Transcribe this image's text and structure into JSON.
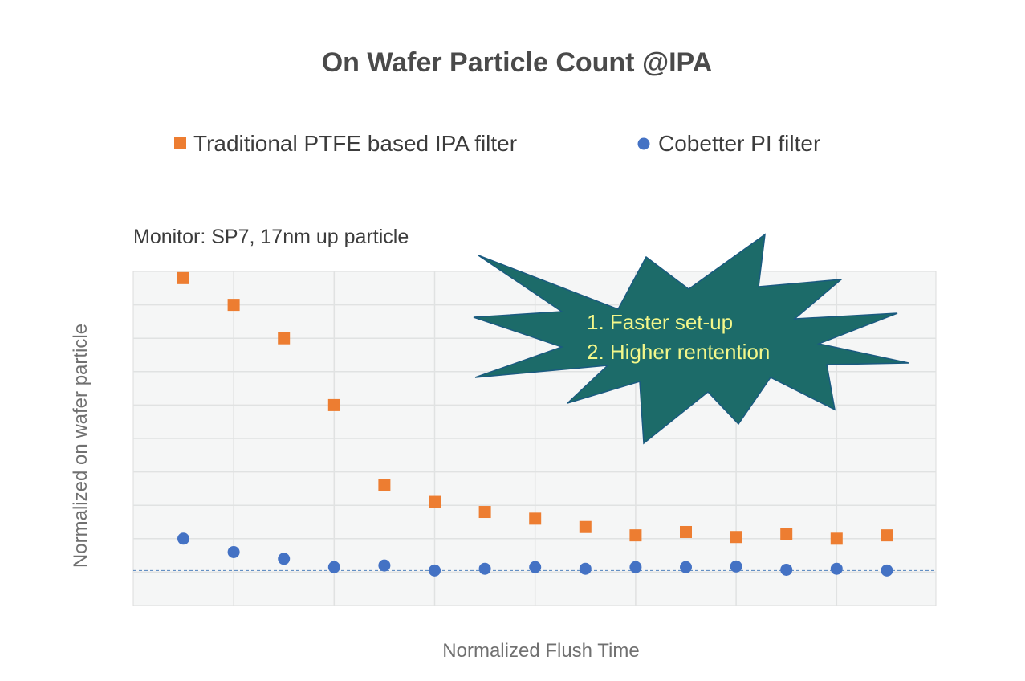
{
  "chart_data": {
    "type": "scatter",
    "title": "On Wafer Particle Count @IPA",
    "xlabel": "Normalized Flush Time",
    "ylabel": "Normalized on wafer particle",
    "ylim": [
      0,
      10
    ],
    "grid": true,
    "legend_position": "top",
    "x": [
      1,
      2,
      3,
      4,
      5,
      6,
      7,
      8,
      9,
      10,
      11,
      12,
      13,
      14,
      15
    ],
    "series": [
      {
        "name": "Traditional PTFE based IPA filter",
        "color": "#ed7d31",
        "marker": "square",
        "values": [
          9.8,
          9.0,
          8.0,
          6.0,
          3.6,
          3.1,
          2.8,
          2.6,
          2.35,
          2.1,
          2.2,
          2.05,
          2.15,
          2.0,
          2.1
        ]
      },
      {
        "name": "Cobetter PI filter",
        "color": "#4472c4",
        "marker": "circle",
        "values": [
          2.0,
          1.6,
          1.4,
          1.15,
          1.2,
          1.05,
          1.1,
          1.15,
          1.1,
          1.15,
          1.15,
          1.17,
          1.07,
          1.1,
          1.05
        ]
      }
    ],
    "reference_lines": [
      2.2,
      1.05
    ],
    "annotations": {
      "monitor": "Monitor: SP7, 17nm up particle",
      "burst_lines": [
        "1. Faster set-up",
        "2. Higher rentention"
      ]
    }
  }
}
